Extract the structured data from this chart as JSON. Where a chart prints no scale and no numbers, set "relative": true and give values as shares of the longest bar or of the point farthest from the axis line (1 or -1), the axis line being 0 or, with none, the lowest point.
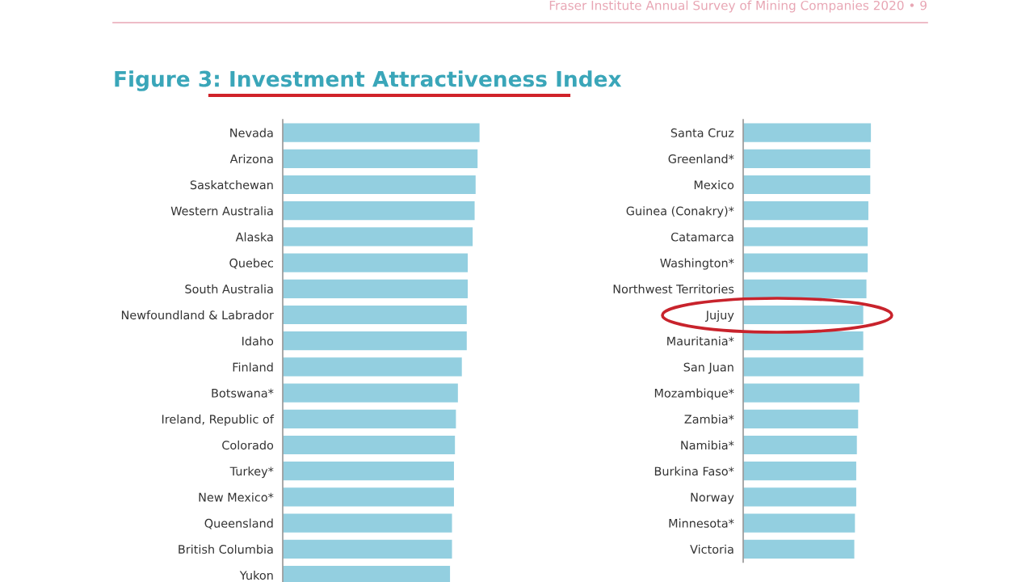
{
  "chart_data": [
    {
      "type": "bar",
      "orientation": "horizontal",
      "relative": true,
      "tick_labels": "y",
      "title": "Figure 3: Investment Attractiveness Index",
      "annotations": [
        "Fraser Institute Annual Survey of Mining Companies 2020 • 9"
      ],
      "categories": [
        "Nevada",
        "Arizona",
        "Saskatchewan",
        "Western Australia",
        "Alaska",
        "Quebec",
        "South Australia",
        "Newfoundland & Labrador",
        "Idaho",
        "Finland",
        "Botswana*",
        "Ireland, Republic of",
        "Colorado",
        "Turkey*",
        "New Mexico*",
        "Queensland",
        "British Columbia",
        "Yukon"
      ],
      "series": [
        {
          "color": "#93cfe0",
          "values": [
            1,
            0.99,
            0.98,
            0.975,
            0.965,
            0.94,
            0.94,
            0.935,
            0.935,
            0.91,
            0.89,
            0.88,
            0.875,
            0.87,
            0.87,
            0.86,
            0.86,
            0.85
          ]
        }
      ]
    },
    {
      "type": "bar",
      "orientation": "horizontal",
      "relative": true,
      "tick_labels": "y",
      "categories": [
        "Santa Cruz",
        "Greenland*",
        "Mexico",
        "Guinea (Conakry)*",
        "Catamarca",
        "Washington*",
        "Northwest Territories",
        "Jujuy",
        "Mauritania*",
        "San Juan",
        "Mozambique*",
        "Zambia*",
        "Namibia*",
        "Burkina Faso*",
        "Norway",
        "Minnesota*",
        "Victoria"
      ],
      "series": [
        {
          "color": "#93cfe0",
          "values": [
            1,
            0.995,
            0.995,
            0.98,
            0.975,
            0.975,
            0.965,
            0.94,
            0.94,
            0.94,
            0.91,
            0.9,
            0.89,
            0.885,
            0.885,
            0.875,
            0.87
          ]
        }
      ]
    }
  ]
}
